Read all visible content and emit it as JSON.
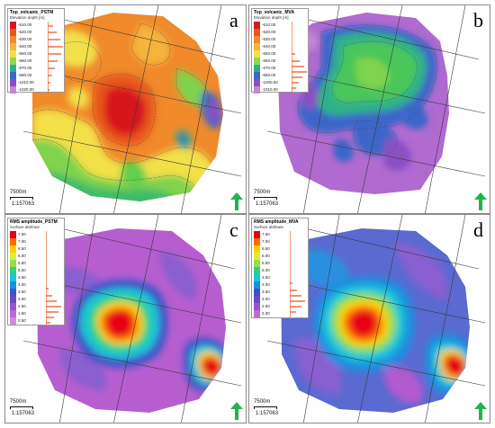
{
  "panels": [
    {
      "letter": "a",
      "legend_title": "Top_volcanic_PSTM",
      "legend_unit": "Elevation depth [m]",
      "legend_values": [
        "-610.00",
        "-620.00",
        "-630.00",
        "-640.00",
        "-650.00",
        "-660.00",
        "-670.00",
        "-680.00",
        "-1010.00",
        "-1020.00"
      ],
      "scale_label": "7500m",
      "scale_ratio": "1:157063"
    },
    {
      "letter": "b",
      "legend_title": "Top_volcanic_MVA",
      "legend_unit": "Elevation depth [m]",
      "legend_values": [
        "-610.00",
        "-620.00",
        "-630.00",
        "-640.00",
        "-650.00",
        "-660.00",
        "-670.00",
        "-680.00",
        "-1000.00",
        "-1010.00"
      ],
      "scale_label": "7500m",
      "scale_ratio": "1:157063"
    },
    {
      "letter": "c",
      "legend_title": "RMS amplitude_PSTM",
      "legend_unit": "Surface attribute",
      "legend_values": [
        "7.50",
        "7.00",
        "6.50",
        "6.00",
        "5.50",
        "5.00",
        "4.50",
        "4.00",
        "3.50",
        "3.00",
        "2.50",
        "1.50",
        "0.50"
      ],
      "scale_label": "7500m",
      "scale_ratio": "1:157063"
    },
    {
      "letter": "d",
      "legend_title": "RMS amplitude_MVA",
      "legend_unit": "Surface attribute",
      "legend_values": [
        "7.50",
        "7.00",
        "6.50",
        "6.00",
        "5.50",
        "5.00",
        "4.50",
        "4.00",
        "3.50",
        "3.00",
        "2.50",
        "2.00"
      ],
      "scale_label": "7500m",
      "scale_ratio": "1:157063"
    }
  ],
  "colors": {
    "depth_ramp": [
      "#d7191c",
      "#e8561f",
      "#f08a2a",
      "#f5b43b",
      "#f2e04a",
      "#b8e04a",
      "#5fcf4e",
      "#2fb08a",
      "#3d66c9",
      "#8a4fc4",
      "#c884d6"
    ],
    "amplitude_ramp": [
      "#e60012",
      "#ff6a00",
      "#ffd000",
      "#b7e53a",
      "#2fd17c",
      "#19c7d9",
      "#1a8fe0",
      "#3b55c8",
      "#7a49c2",
      "#b25ad0",
      "#d38be0"
    ],
    "north_arrow": "#22b24c",
    "seismic_line": "#3a3a3a"
  }
}
